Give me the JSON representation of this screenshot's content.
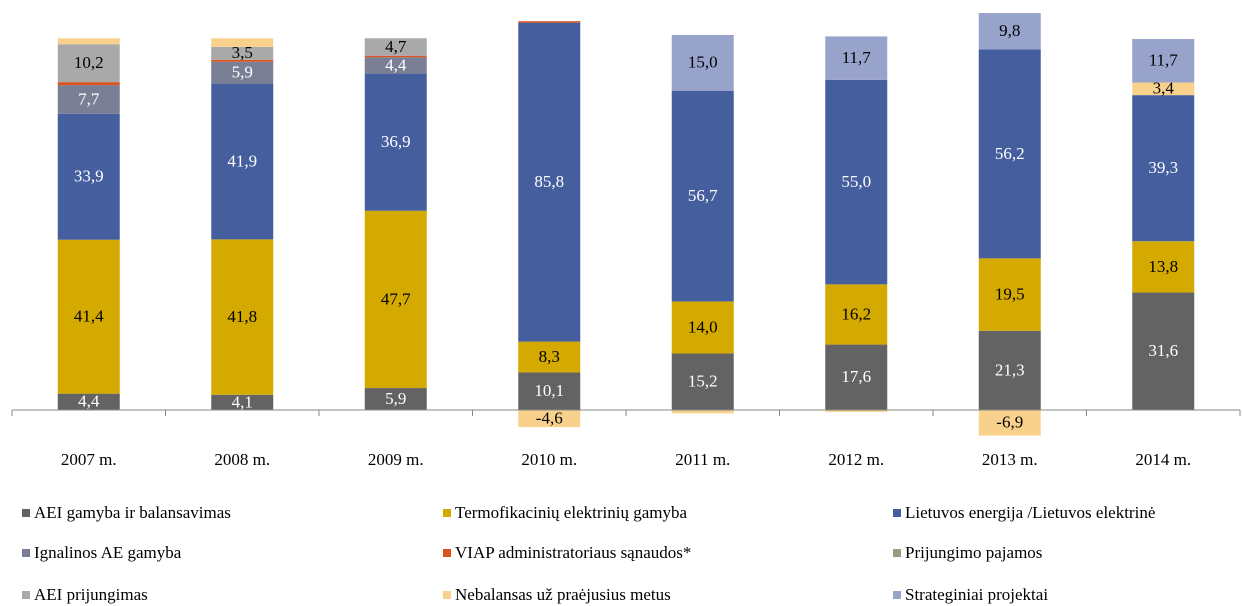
{
  "chart_data": {
    "type": "stacked_bar",
    "categories": [
      "2007 m.",
      "2008 m.",
      "2009 m.",
      "2010 m.",
      "2011 m.",
      "2012 m.",
      "2013 m.",
      "2014 m."
    ],
    "series": [
      {
        "name": "AEI gamyba ir balansavimas",
        "color": "#636363",
        "label_color": "#ffffff",
        "values": [
          4.4,
          4.1,
          5.9,
          10.1,
          15.2,
          17.6,
          21.3,
          31.6
        ],
        "value_labels": [
          "4,4",
          "4,1",
          "5,9",
          "10,1",
          "15,2",
          "17,6",
          "21,3",
          "31,6"
        ]
      },
      {
        "name": "Termofikacinių elektrinių gamyba",
        "color": "#d4aa00",
        "label_color": "#000000",
        "values": [
          41.4,
          41.8,
          47.7,
          8.3,
          14.0,
          16.2,
          19.5,
          13.8
        ],
        "value_labels": [
          "41,4",
          "41,8",
          "47,7",
          "8,3",
          "14,0",
          "16,2",
          "19,5",
          "13,8"
        ]
      },
      {
        "name": "Lietuvos energija /Lietuvos elektrinė",
        "color": "#455e9e",
        "label_color": "#ffffff",
        "values": [
          33.9,
          41.9,
          36.9,
          85.8,
          56.7,
          55.0,
          56.2,
          39.3
        ],
        "value_labels": [
          "33,9",
          "41,9",
          "36,9",
          "85,8",
          "56,7",
          "55,0",
          "56,2",
          "39,3"
        ]
      },
      {
        "name": "Ignalinos AE gamyba",
        "color": "#7b7f96",
        "label_color": "#ffffff",
        "values": [
          7.7,
          5.9,
          4.4,
          0,
          0,
          0,
          0,
          0
        ],
        "value_labels": [
          "7,7",
          "5,9",
          "4,4",
          null,
          null,
          null,
          null,
          null
        ]
      },
      {
        "name": "VIAP administratoriaus sąnaudos*",
        "color": "#d9531e",
        "label_color": "#000000",
        "values": [
          0.8,
          0.5,
          0.4,
          0.4,
          0,
          0,
          0,
          0
        ],
        "value_labels": [
          null,
          null,
          null,
          null,
          null,
          null,
          null,
          null
        ]
      },
      {
        "name": "Prijungimo pajamos",
        "color": "#9a9a82",
        "label_color": "#000000",
        "values": [
          0,
          0,
          0,
          0,
          0,
          0,
          0,
          0
        ],
        "value_labels": [
          null,
          null,
          null,
          null,
          null,
          null,
          null,
          null
        ]
      },
      {
        "name": "AEI prijungimas",
        "color": "#a9a9a9",
        "label_color": "#000000",
        "values": [
          10.2,
          3.5,
          4.7,
          0,
          0,
          0,
          0,
          0
        ],
        "value_labels": [
          "10,2",
          "3,5",
          "4,7",
          null,
          null,
          null,
          null,
          null
        ]
      },
      {
        "name": "Nebalansas už praėjusius metus",
        "color": "#f8d28c",
        "label_color": "#000000",
        "values": [
          1.6,
          2.3,
          0,
          -4.6,
          -0.9,
          -0.5,
          -6.9,
          3.4
        ],
        "value_labels": [
          null,
          null,
          null,
          "-4,6",
          null,
          null,
          "-6,9",
          "3,4"
        ]
      },
      {
        "name": "Strateginiai projektai",
        "color": "#98a3cc",
        "label_color": "#000000",
        "values": [
          0,
          0,
          0,
          0,
          15.0,
          11.7,
          9.8,
          11.7
        ],
        "value_labels": [
          null,
          null,
          null,
          null,
          "15,0",
          "11,7",
          "9,8",
          "11,7"
        ]
      }
    ]
  }
}
